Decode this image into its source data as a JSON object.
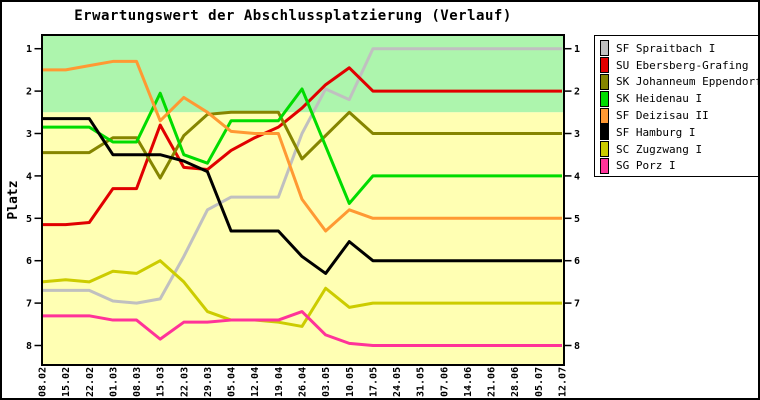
{
  "chart_data": {
    "type": "line",
    "title": "Erwartungswert der Abschlussplatzierung (Verlauf)",
    "ylabel": "Platz",
    "y_axis_inverted": true,
    "ylim": [
      0.68,
      8.46
    ],
    "y_ticks": [
      1,
      2,
      3,
      4,
      5,
      6,
      7,
      8
    ],
    "grid": false,
    "legend_position": "right",
    "bands": [
      {
        "from": 0.68,
        "to": 2.5,
        "color": "#adf5ad"
      },
      {
        "from": 2.5,
        "to": 8.46,
        "color": "#ffffb3"
      }
    ],
    "x_labels": [
      "08.02",
      "15.02",
      "22.02",
      "01.03",
      "08.03",
      "15.03",
      "22.03",
      "29.03",
      "05.04",
      "12.04",
      "19.04",
      "26.04",
      "03.05",
      "10.05",
      "17.05",
      "24.05",
      "31.05",
      "07.06",
      "14.06",
      "21.06",
      "28.06",
      "05.07",
      "12.07"
    ],
    "series": [
      {
        "name": "SF Spraitbach I",
        "color": "#c0c0c0",
        "values": [
          6.7,
          6.7,
          6.7,
          6.95,
          7.0,
          6.9,
          5.9,
          4.8,
          4.5,
          4.5,
          4.5,
          3.0,
          1.95,
          2.2,
          1,
          1,
          1,
          1,
          1,
          1,
          1,
          1,
          1
        ]
      },
      {
        "name": "SU Ebersberg-Grafing",
        "color": "#e10000",
        "values": [
          5.15,
          5.15,
          5.1,
          4.3,
          4.3,
          2.8,
          3.8,
          3.85,
          3.4,
          3.1,
          2.85,
          2.4,
          1.85,
          1.45,
          2,
          2,
          2,
          2,
          2,
          2,
          2,
          2,
          2
        ]
      },
      {
        "name": "SK Johanneum Eppendorf I",
        "color": "#858500",
        "values": [
          3.45,
          3.45,
          3.45,
          3.1,
          3.1,
          4.05,
          3.05,
          2.55,
          2.5,
          2.5,
          2.5,
          3.6,
          3.05,
          2.5,
          3,
          3,
          3,
          3,
          3,
          3,
          3,
          3,
          3
        ]
      },
      {
        "name": "SK Heidenau I",
        "color": "#00dc00",
        "values": [
          2.85,
          2.85,
          2.85,
          3.2,
          3.2,
          2.05,
          3.5,
          3.7,
          2.7,
          2.7,
          2.7,
          1.95,
          3.3,
          4.65,
          4,
          4,
          4,
          4,
          4,
          4,
          4,
          4,
          4
        ]
      },
      {
        "name": "SF Deizisau II",
        "color": "#ff9933",
        "values": [
          1.5,
          1.5,
          1.4,
          1.3,
          1.3,
          2.7,
          2.15,
          2.5,
          2.95,
          3.0,
          3.0,
          4.55,
          5.3,
          4.8,
          5,
          5,
          5,
          5,
          5,
          5,
          5,
          5,
          5
        ]
      },
      {
        "name": "SF Hamburg I",
        "color": "#000000",
        "values": [
          2.65,
          2.65,
          2.65,
          3.5,
          3.5,
          3.5,
          3.65,
          3.9,
          5.3,
          5.3,
          5.3,
          5.9,
          6.3,
          5.55,
          6,
          6,
          6,
          6,
          6,
          6,
          6,
          6,
          6
        ]
      },
      {
        "name": "SC Zugzwang I",
        "color": "#cccc00",
        "values": [
          6.5,
          6.45,
          6.5,
          6.25,
          6.3,
          6.0,
          6.5,
          7.2,
          7.4,
          7.4,
          7.45,
          7.55,
          6.65,
          7.1,
          7,
          7,
          7,
          7,
          7,
          7,
          7,
          7,
          7
        ]
      },
      {
        "name": "SG Porz I",
        "color": "#ff3399",
        "values": [
          7.3,
          7.3,
          7.3,
          7.4,
          7.4,
          7.85,
          7.45,
          7.45,
          7.4,
          7.4,
          7.4,
          7.2,
          7.75,
          7.95,
          8,
          8,
          8,
          8,
          8,
          8,
          8,
          8,
          8
        ]
      }
    ]
  }
}
